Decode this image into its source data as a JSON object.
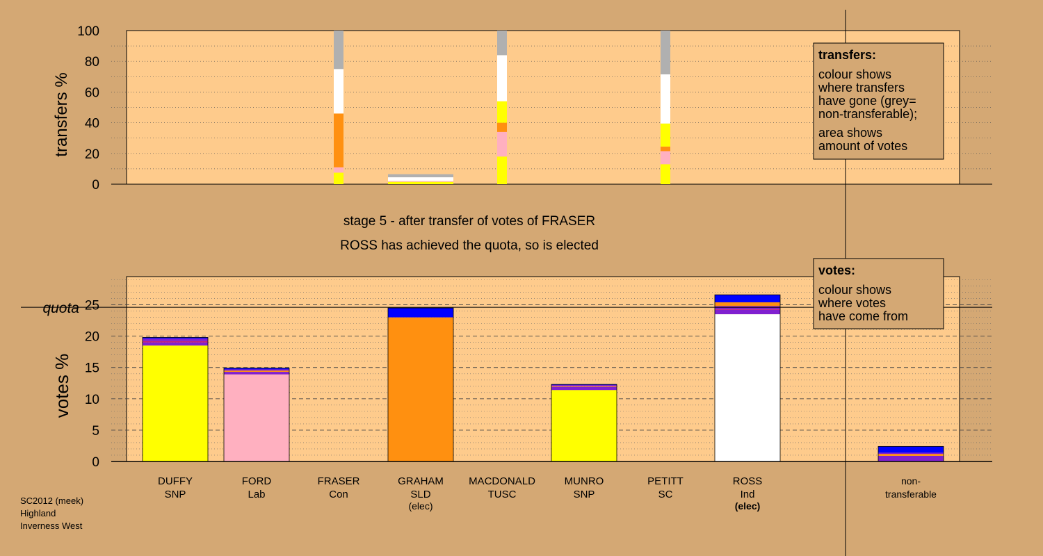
{
  "colors": {
    "page_background": "#d4a874",
    "plot_background": "#fecb8c",
    "SNP": "#ffff00",
    "Lab": "#ffb0c0",
    "Con": "#0000ff",
    "SLD": "#ff9010",
    "Ind": "#ffffff",
    "SC": "#8020d0",
    "TUSC": "#c02080",
    "non_transferable": "#b0b0b0"
  },
  "caption": {
    "line1": "stage 5 - after transfer of votes of FRASER",
    "line2": "ROSS has achieved the quota, so is elected"
  },
  "footer": {
    "line1": "SC2012 (meek)",
    "line2": "Highland",
    "line3": "Inverness West"
  },
  "candidates": [
    {
      "name": "DUFFY",
      "party": "SNP",
      "status": ""
    },
    {
      "name": "FORD",
      "party": "Lab",
      "status": ""
    },
    {
      "name": "FRASER",
      "party": "Con",
      "status": ""
    },
    {
      "name": "GRAHAM",
      "party": "SLD",
      "status": "(elec)"
    },
    {
      "name": "MACDONALD",
      "party": "TUSC",
      "status": ""
    },
    {
      "name": "MUNRO",
      "party": "SNP",
      "status": ""
    },
    {
      "name": "PETITT",
      "party": "SC",
      "status": ""
    },
    {
      "name": "ROSS",
      "party": "Ind",
      "status": "(elec)"
    }
  ],
  "nontransferable_label": {
    "line1": "non-",
    "line2": "transferable"
  },
  "chart_data": [
    {
      "type": "bar",
      "id": "transfers",
      "ylabel": "transfers %",
      "ylim": [
        0,
        100
      ],
      "yticks": [
        0,
        20,
        40,
        60,
        80,
        100
      ],
      "grid": "dotted",
      "categories": [
        "DUFFY",
        "FORD",
        "FRASER",
        "GRAHAM",
        "MACDONALD",
        "MUNRO",
        "PETITT",
        "ROSS"
      ],
      "legend": {
        "title": "transfers:",
        "lines": [
          "colour shows",
          "where transfers",
          "have gone (grey=",
          "non-transferable);",
          "area shows",
          "amount of votes"
        ],
        "placement": "top-right"
      },
      "stacks": [
        {
          "category": "FRASER",
          "segments": [
            {
              "color": "#ffff00",
              "value": 7.5
            },
            {
              "color": "#ffb0c0",
              "value": 3.5
            },
            {
              "color": "#ff9010",
              "value": 35
            },
            {
              "color": "#ffffff",
              "value": 29
            },
            {
              "color": "#b0b0b0",
              "value": 25
            }
          ]
        },
        {
          "category": "GRAHAM",
          "segments": [
            {
              "color": "#ffff00",
              "value": 1.5
            },
            {
              "color": "#ffb0c0",
              "value": 0.5
            },
            {
              "color": "#ffffff",
              "value": 2.5
            },
            {
              "color": "#b0b0b0",
              "value": 2
            }
          ]
        },
        {
          "category": "MACDONALD",
          "segments": [
            {
              "color": "#ffff00",
              "value": 18
            },
            {
              "color": "#ffb0c0",
              "value": 16
            },
            {
              "color": "#ff9010",
              "value": 6
            },
            {
              "color": "#ffff00",
              "value": 14
            },
            {
              "color": "#ffffff",
              "value": 30
            },
            {
              "color": "#b0b0b0",
              "value": 16
            }
          ]
        },
        {
          "category": "PETITT",
          "segments": [
            {
              "color": "#ffff00",
              "value": 13
            },
            {
              "color": "#ffb0c0",
              "value": 8.5
            },
            {
              "color": "#ff9010",
              "value": 3
            },
            {
              "color": "#ffff00",
              "value": 15
            },
            {
              "color": "#ffffff",
              "value": 32
            },
            {
              "color": "#b0b0b0",
              "value": 28.5
            }
          ]
        }
      ]
    },
    {
      "type": "bar",
      "id": "votes",
      "ylabel": "votes %",
      "ylim": [
        0,
        29.5
      ],
      "yticks": [
        0,
        5,
        10,
        15,
        20,
        25
      ],
      "quota": 24.6,
      "quota_label": "quota",
      "grid": "dotted",
      "categories": [
        "DUFFY",
        "FORD",
        "FRASER",
        "GRAHAM",
        "MACDONALD",
        "MUNRO",
        "PETITT",
        "ROSS",
        "non-transferable"
      ],
      "legend": {
        "title": "votes:",
        "lines": [
          "colour shows",
          "where votes",
          "have come from"
        ],
        "placement": "top-right"
      },
      "stacks": [
        {
          "category": "DUFFY",
          "segments": [
            {
              "color": "#ffff00",
              "value": 18.5
            },
            {
              "color": "#8020d0",
              "value": 0.5
            },
            {
              "color": "#c02080",
              "value": 0.2
            },
            {
              "color": "#8020d0",
              "value": 0.4
            },
            {
              "color": "#0000ff",
              "value": 0.2
            }
          ]
        },
        {
          "category": "FORD",
          "segments": [
            {
              "color": "#ffb0c0",
              "value": 13.9
            },
            {
              "color": "#8020d0",
              "value": 0.4
            },
            {
              "color": "#ff9010",
              "value": 0.2
            },
            {
              "color": "#8020d0",
              "value": 0.2
            },
            {
              "color": "#0000ff",
              "value": 0.2
            }
          ]
        },
        {
          "category": "GRAHAM",
          "segments": [
            {
              "color": "#ff9010",
              "value": 23
            },
            {
              "color": "#0000ff",
              "value": 1.5
            }
          ]
        },
        {
          "category": "MUNRO",
          "segments": [
            {
              "color": "#ffff00",
              "value": 11.4
            },
            {
              "color": "#8020d0",
              "value": 0.5
            },
            {
              "color": "#ff9010",
              "value": 0.1
            },
            {
              "color": "#8020d0",
              "value": 0.2
            },
            {
              "color": "#0000ff",
              "value": 0.1
            }
          ]
        },
        {
          "category": "ROSS",
          "segments": [
            {
              "color": "#ffffff",
              "value": 23.5
            },
            {
              "color": "#8020d0",
              "value": 0.7
            },
            {
              "color": "#c02080",
              "value": 0.1
            },
            {
              "color": "#8020d0",
              "value": 0.5
            },
            {
              "color": "#ff9010",
              "value": 0.6
            },
            {
              "color": "#0000ff",
              "value": 1.2
            }
          ]
        },
        {
          "category": "non-transferable",
          "segments": [
            {
              "color": "#8020d0",
              "value": 0.9
            },
            {
              "color": "#ff9010",
              "value": 0.3
            },
            {
              "color": "#8020d0",
              "value": 0.2
            },
            {
              "color": "#0000ff",
              "value": 1.0
            }
          ]
        }
      ]
    }
  ]
}
